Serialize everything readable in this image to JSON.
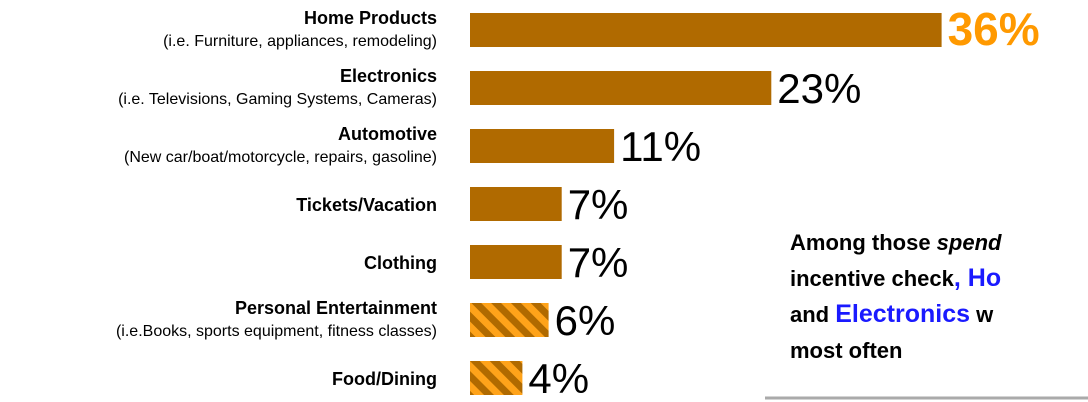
{
  "chart_data": {
    "type": "bar",
    "orientation": "horizontal",
    "categories": [
      "Home Products",
      "Electronics",
      "Automotive",
      "Tickets/Vacation",
      "Clothing",
      "Personal Entertainment",
      "Food/Dining"
    ],
    "sublabels": [
      "(i.e. Furniture, appliances, remodeling)",
      "(i.e. Televisions, Gaming Systems, Cameras)",
      "(New car/boat/motorcycle, repairs, gasoline)",
      null,
      null,
      "(i.e.Books, sports equipment, fitness classes)",
      null
    ],
    "values": [
      36,
      23,
      11,
      7,
      7,
      6,
      4
    ],
    "value_labels": [
      "36%",
      "23%",
      "11%",
      "7%",
      "7%",
      "6%",
      "4%"
    ],
    "color": "#b06a00",
    "striped": [
      false,
      false,
      false,
      false,
      false,
      true,
      true
    ],
    "stripe_color": "#ffa31a",
    "highlight_color": "#ff9900",
    "callout": {
      "lines": [
        [
          {
            "text": "Among those ",
            "style": "normal"
          },
          {
            "text": "spend",
            "style": "italic"
          }
        ],
        [
          {
            "text": "incentive check",
            "style": "normal"
          },
          {
            "text": ", Ho",
            "style": "blue"
          }
        ],
        [
          {
            "text": "and ",
            "style": "normal"
          },
          {
            "text": "Electronics",
            "style": "blue"
          },
          {
            "text": " w",
            "style": "normal"
          }
        ],
        [
          {
            "text": "most often",
            "style": "normal"
          }
        ]
      ]
    }
  }
}
